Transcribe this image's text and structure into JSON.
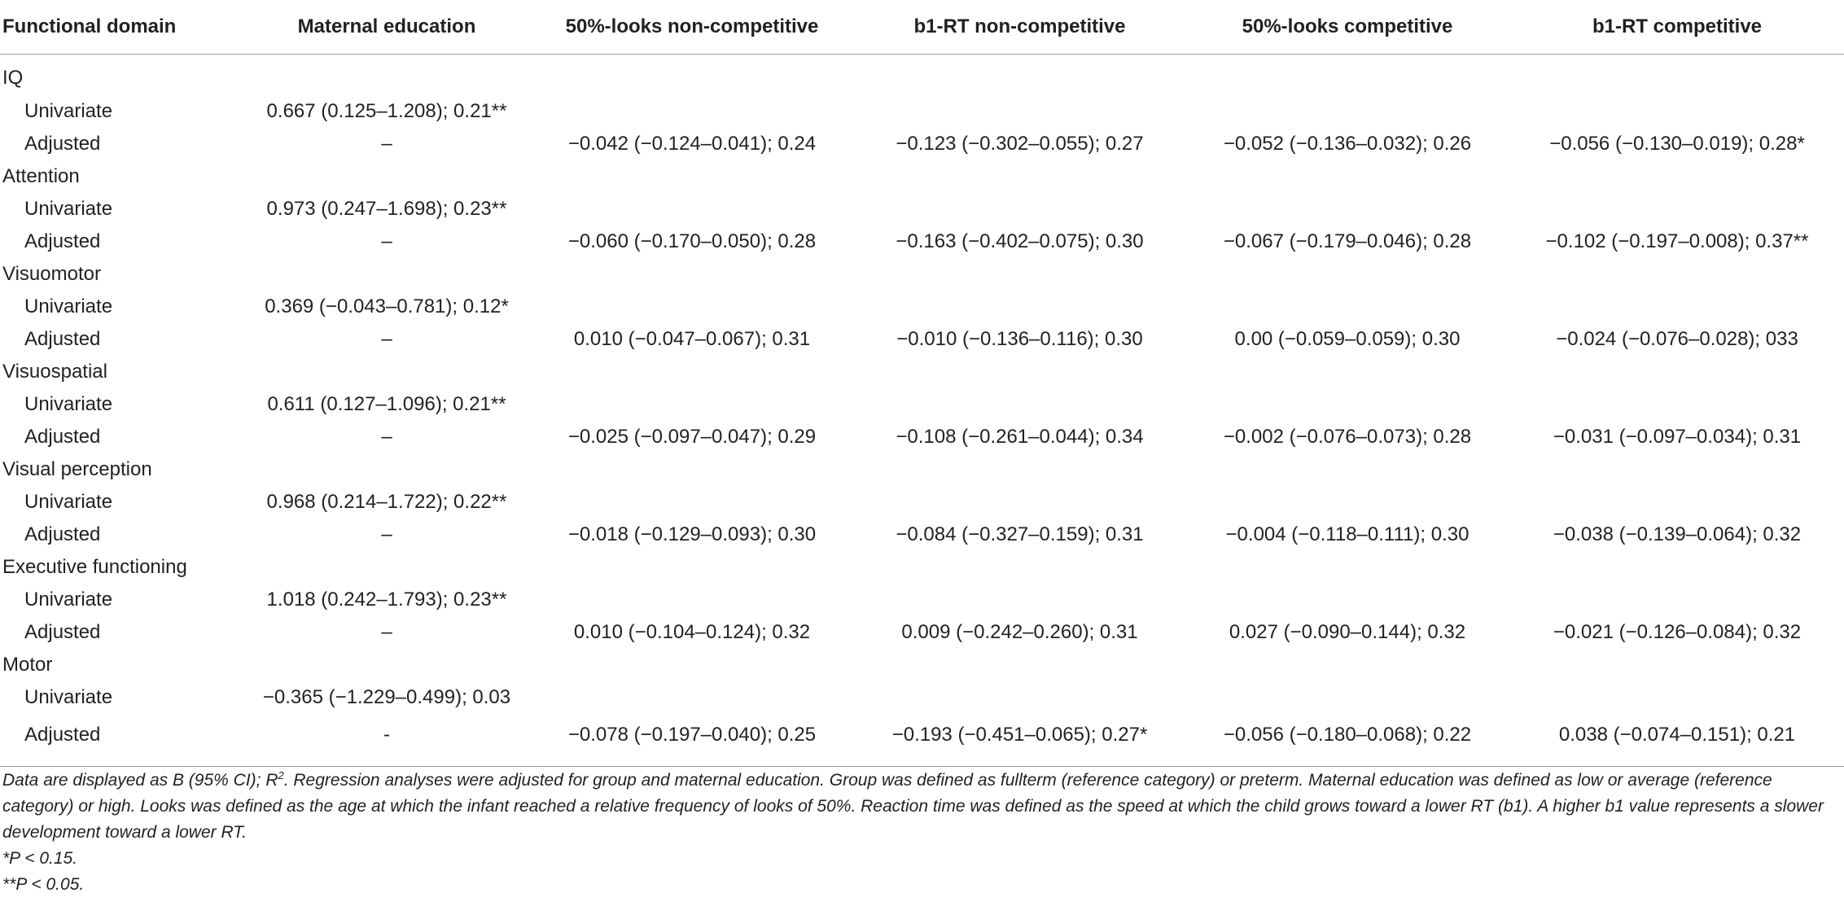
{
  "table": {
    "headers": [
      "Functional domain",
      "Maternal education",
      "50%-looks non-competitive",
      "b1-RT non-competitive",
      "50%-looks competitive",
      "b1-RT competitive"
    ],
    "rows": [
      {
        "type": "domain",
        "cells": [
          "IQ",
          "",
          "",
          "",
          "",
          ""
        ]
      },
      {
        "type": "sub",
        "cells": [
          "Univariate",
          "0.667 (0.125–1.208); 0.21**",
          "",
          "",
          "",
          ""
        ]
      },
      {
        "type": "sub",
        "cells": [
          "Adjusted",
          "–",
          "−0.042 (−0.124–0.041); 0.24",
          "−0.123 (−0.302–0.055); 0.27",
          "−0.052 (−0.136–0.032); 0.26",
          "−0.056 (−0.130–0.019); 0.28*"
        ]
      },
      {
        "type": "domain",
        "cells": [
          "Attention",
          "",
          "",
          "",
          "",
          ""
        ]
      },
      {
        "type": "sub",
        "cells": [
          "Univariate",
          "0.973 (0.247–1.698); 0.23**",
          "",
          "",
          "",
          ""
        ]
      },
      {
        "type": "sub",
        "cells": [
          "Adjusted",
          "–",
          "−0.060 (−0.170–0.050); 0.28",
          "−0.163 (−0.402–0.075); 0.30",
          "−0.067 (−0.179–0.046); 0.28",
          "−0.102 (−0.197–0.008); 0.37**"
        ]
      },
      {
        "type": "domain",
        "cells": [
          "Visuomotor",
          "",
          "",
          "",
          "",
          ""
        ]
      },
      {
        "type": "sub",
        "cells": [
          "Univariate",
          "0.369 (−0.043–0.781); 0.12*",
          "",
          "",
          "",
          ""
        ]
      },
      {
        "type": "sub",
        "cells": [
          "Adjusted",
          "–",
          "0.010 (−0.047–0.067); 0.31",
          "−0.010 (−0.136–0.116); 0.30",
          "0.00 (−0.059–0.059); 0.30",
          "−0.024 (−0.076–0.028); 033"
        ]
      },
      {
        "type": "domain",
        "cells": [
          "Visuospatial",
          "",
          "",
          "",
          "",
          ""
        ]
      },
      {
        "type": "sub",
        "cells": [
          "Univariate",
          "0.611 (0.127–1.096); 0.21**",
          "",
          "",
          "",
          ""
        ]
      },
      {
        "type": "sub",
        "cells": [
          "Adjusted",
          "–",
          "−0.025 (−0.097–0.047); 0.29",
          "−0.108 (−0.261–0.044); 0.34",
          "−0.002 (−0.076–0.073); 0.28",
          "−0.031 (−0.097–0.034); 0.31"
        ]
      },
      {
        "type": "domain",
        "cells": [
          "Visual perception",
          "",
          "",
          "",
          "",
          ""
        ]
      },
      {
        "type": "sub",
        "cells": [
          "Univariate",
          "0.968 (0.214–1.722); 0.22**",
          "",
          "",
          "",
          ""
        ]
      },
      {
        "type": "sub",
        "cells": [
          "Adjusted",
          "–",
          "−0.018 (−0.129–0.093); 0.30",
          "−0.084 (−0.327–0.159); 0.31",
          "−0.004 (−0.118–0.111); 0.30",
          "−0.038 (−0.139–0.064); 0.32"
        ]
      },
      {
        "type": "domain",
        "cells": [
          "Executive functioning",
          "",
          "",
          "",
          "",
          ""
        ]
      },
      {
        "type": "sub",
        "cells": [
          "Univariate",
          "1.018 (0.242–1.793); 0.23**",
          "",
          "",
          "",
          ""
        ]
      },
      {
        "type": "sub",
        "cells": [
          "Adjusted",
          "–",
          "0.010 (−0.104–0.124); 0.32",
          "0.009 (−0.242–0.260); 0.31",
          "0.027 (−0.090–0.144); 0.32",
          "−0.021 (−0.126–0.084); 0.32"
        ]
      },
      {
        "type": "domain",
        "cells": [
          "Motor",
          "",
          "",
          "",
          "",
          ""
        ]
      },
      {
        "type": "sub",
        "cells": [
          "Univariate",
          "−0.365 (−1.229–0.499); 0.03",
          "",
          "",
          "",
          ""
        ]
      },
      {
        "type": "sub",
        "cells": [
          "Adjusted",
          "-",
          "−0.078 (−0.197–0.040); 0.25",
          "−0.193 (−0.451–0.065); 0.27*",
          "−0.056 (−0.180–0.068); 0.22",
          "0.038 (−0.074–0.151); 0.21"
        ]
      }
    ]
  },
  "notes": {
    "main_before_sup": "Data are displayed as B (95% CI); R",
    "main_sup": "2",
    "main_after_sup": ". Regression analyses were adjusted for group and maternal education. Group was defined as fullterm (reference category) or preterm. Maternal education was defined as low or average (reference category) or high. Looks was defined as the age at which the infant reached a relative frequency of looks of 50%. Reaction time was defined as the speed at which the child grows toward a lower RT (b1). A higher b1 value represents a slower development toward a lower RT.",
    "footnote1": "*P < 0.15.",
    "footnote2": "**P < 0.05."
  }
}
